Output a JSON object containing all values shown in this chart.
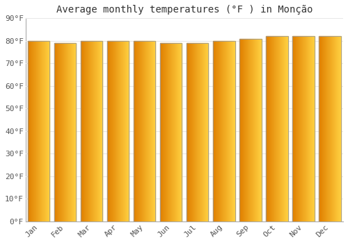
{
  "months": [
    "Jan",
    "Feb",
    "Mar",
    "Apr",
    "May",
    "Jun",
    "Jul",
    "Aug",
    "Sep",
    "Oct",
    "Nov",
    "Dec"
  ],
  "values": [
    80,
    79,
    80,
    80,
    80,
    79,
    79,
    80,
    81,
    82,
    82,
    82
  ],
  "title": "Average monthly temperatures (°F ) in Monção",
  "ylim": [
    0,
    90
  ],
  "yticks": [
    0,
    10,
    20,
    30,
    40,
    50,
    60,
    70,
    80,
    90
  ],
  "ytick_labels": [
    "0°F",
    "10°F",
    "20°F",
    "30°F",
    "40°F",
    "50°F",
    "60°F",
    "70°F",
    "80°F",
    "90°F"
  ],
  "background_color": "#ffffff",
  "grid_color": "#e8e8e8",
  "bar_color_left": "#E08000",
  "bar_color_right": "#FFD040",
  "bar_edge_color": "#999999",
  "title_fontsize": 10,
  "tick_fontsize": 8,
  "bar_width": 0.82,
  "gradient_steps": 60
}
